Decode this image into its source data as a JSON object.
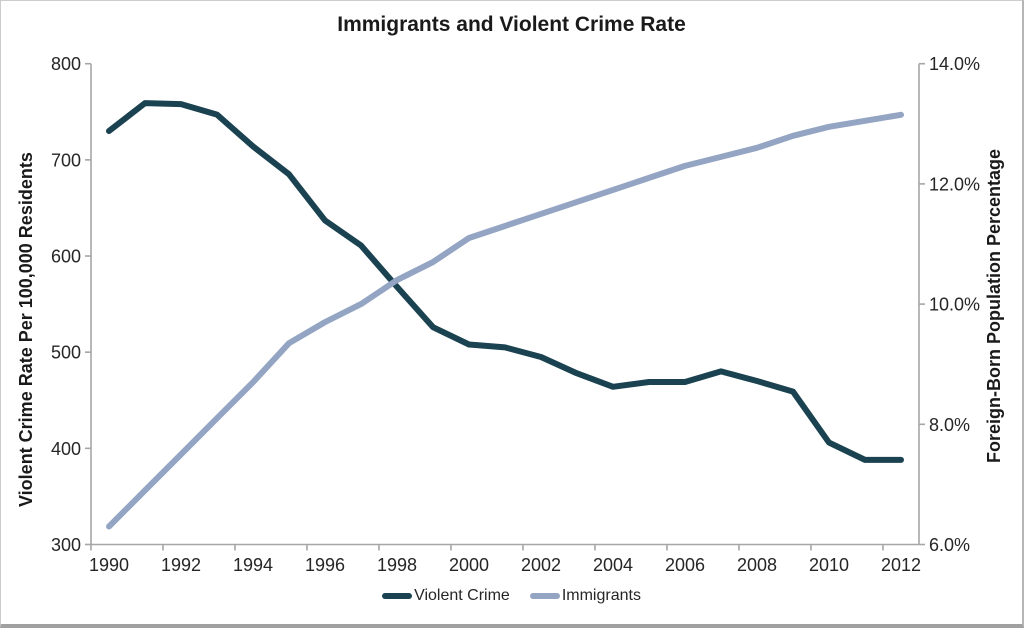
{
  "chart_data": {
    "type": "line",
    "title": "Immigrants and Violent Crime Rate",
    "x": [
      1990,
      1991,
      1992,
      1993,
      1994,
      1995,
      1996,
      1997,
      1998,
      1999,
      2000,
      2001,
      2002,
      2003,
      2004,
      2005,
      2006,
      2007,
      2008,
      2009,
      2010,
      2011,
      2012
    ],
    "x_tick_labels": [
      "1990",
      "1992",
      "1994",
      "1996",
      "1998",
      "2000",
      "2002",
      "2004",
      "2006",
      "2008",
      "2010",
      "2012"
    ],
    "series": [
      {
        "name": "Violent Crime",
        "axis": "left",
        "color": "#1a4250",
        "values": [
          730,
          759,
          758,
          747,
          714,
          685,
          637,
          611,
          568,
          526,
          508,
          505,
          495,
          478,
          464,
          469,
          469,
          480,
          470,
          459,
          406,
          388,
          388
        ]
      },
      {
        "name": "Immigrants",
        "axis": "right",
        "color": "#93a5c3",
        "values": [
          6.3,
          6.9,
          7.5,
          8.1,
          8.7,
          9.35,
          9.7,
          10.0,
          10.4,
          10.7,
          11.1,
          11.3,
          11.5,
          11.7,
          11.9,
          12.1,
          12.3,
          12.45,
          12.6,
          12.8,
          12.95,
          13.05,
          13.15
        ]
      }
    ],
    "left_axis": {
      "label": "Violent Crime Rate Per 100,000 Residents",
      "min": 300,
      "max": 800,
      "tick_labels": [
        "300",
        "400",
        "500",
        "600",
        "700",
        "800"
      ]
    },
    "right_axis": {
      "label": "Foreign-Born Population Percentage",
      "min": 6.0,
      "max": 14.0,
      "tick_labels": [
        "6.0%",
        "8.0%",
        "10.0%",
        "12.0%",
        "14.0%"
      ]
    },
    "legend": {
      "position": "bottom",
      "entries": [
        "Violent Crime",
        "Immigrants"
      ]
    },
    "grid": false,
    "axis_color": "#a6a6a6",
    "text_color": "#262626"
  }
}
